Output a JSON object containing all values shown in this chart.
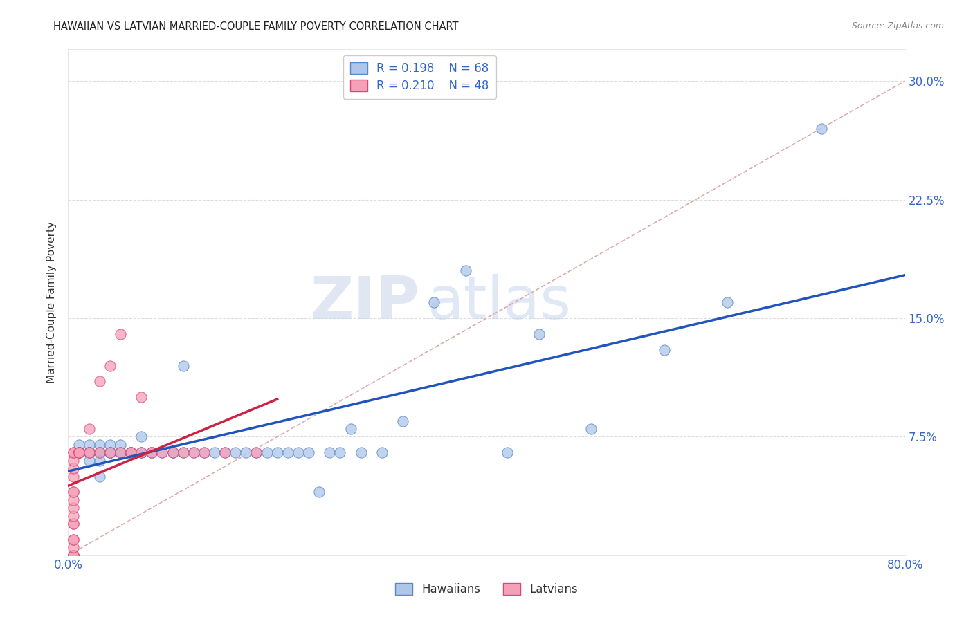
{
  "title": "HAWAIIAN VS LATVIAN MARRIED-COUPLE FAMILY POVERTY CORRELATION CHART",
  "source": "Source: ZipAtlas.com",
  "ylabel": "Married-Couple Family Poverty",
  "xlim": [
    0.0,
    0.8
  ],
  "ylim": [
    0.0,
    0.32
  ],
  "xticks": [
    0.0,
    0.1,
    0.2,
    0.3,
    0.4,
    0.5,
    0.6,
    0.7,
    0.8
  ],
  "xticklabels": [
    "0.0%",
    "",
    "",
    "",
    "",
    "",
    "",
    "",
    "80.0%"
  ],
  "yticks": [
    0.0,
    0.075,
    0.15,
    0.225,
    0.3
  ],
  "yticklabels": [
    "",
    "7.5%",
    "15.0%",
    "22.5%",
    "30.0%"
  ],
  "hawaiian_color": "#aec6e8",
  "latvian_color": "#f4a0b8",
  "hawaiian_edge": "#5588cc",
  "latvian_edge": "#dd4477",
  "trend_hawaiian_color": "#2255bb",
  "trend_latvian_color": "#cc2244",
  "diagonal_color": "#ddaaaa",
  "watermark_zip": "ZIP",
  "watermark_atlas": "atlas",
  "legend_hawaiian_R": "0.198",
  "legend_hawaiian_N": "68",
  "legend_latvian_R": "0.210",
  "legend_latvian_N": "48",
  "hawaiian_x": [
    0.01,
    0.01,
    0.01,
    0.02,
    0.02,
    0.02,
    0.02,
    0.02,
    0.02,
    0.02,
    0.03,
    0.03,
    0.03,
    0.03,
    0.03,
    0.03,
    0.03,
    0.03,
    0.04,
    0.04,
    0.04,
    0.04,
    0.04,
    0.04,
    0.05,
    0.05,
    0.05,
    0.05,
    0.06,
    0.06,
    0.06,
    0.07,
    0.07,
    0.07,
    0.08,
    0.08,
    0.09,
    0.1,
    0.1,
    0.11,
    0.11,
    0.12,
    0.13,
    0.14,
    0.15,
    0.16,
    0.17,
    0.18,
    0.19,
    0.2,
    0.21,
    0.22,
    0.23,
    0.24,
    0.25,
    0.26,
    0.27,
    0.28,
    0.3,
    0.32,
    0.35,
    0.38,
    0.42,
    0.45,
    0.5,
    0.57,
    0.63,
    0.72
  ],
  "hawaiian_y": [
    0.065,
    0.07,
    0.065,
    0.065,
    0.07,
    0.065,
    0.065,
    0.065,
    0.065,
    0.06,
    0.065,
    0.065,
    0.065,
    0.065,
    0.07,
    0.065,
    0.06,
    0.05,
    0.065,
    0.065,
    0.065,
    0.07,
    0.065,
    0.065,
    0.065,
    0.065,
    0.07,
    0.065,
    0.065,
    0.065,
    0.065,
    0.065,
    0.075,
    0.065,
    0.065,
    0.065,
    0.065,
    0.065,
    0.065,
    0.065,
    0.12,
    0.065,
    0.065,
    0.065,
    0.065,
    0.065,
    0.065,
    0.065,
    0.065,
    0.065,
    0.065,
    0.065,
    0.065,
    0.04,
    0.065,
    0.065,
    0.08,
    0.065,
    0.065,
    0.085,
    0.16,
    0.18,
    0.065,
    0.14,
    0.08,
    0.13,
    0.16,
    0.27
  ],
  "latvian_x": [
    0.005,
    0.005,
    0.005,
    0.005,
    0.005,
    0.005,
    0.005,
    0.005,
    0.005,
    0.005,
    0.005,
    0.005,
    0.005,
    0.005,
    0.005,
    0.005,
    0.005,
    0.005,
    0.005,
    0.005,
    0.01,
    0.01,
    0.01,
    0.01,
    0.01,
    0.01,
    0.01,
    0.02,
    0.02,
    0.02,
    0.03,
    0.03,
    0.04,
    0.04,
    0.05,
    0.05,
    0.06,
    0.06,
    0.07,
    0.07,
    0.08,
    0.09,
    0.1,
    0.11,
    0.12,
    0.13,
    0.15,
    0.18
  ],
  "latvian_y": [
    0.0,
    0.0,
    0.0,
    0.0,
    0.0,
    0.005,
    0.01,
    0.01,
    0.02,
    0.02,
    0.025,
    0.03,
    0.035,
    0.04,
    0.04,
    0.05,
    0.055,
    0.06,
    0.065,
    0.065,
    0.065,
    0.065,
    0.065,
    0.065,
    0.065,
    0.065,
    0.065,
    0.065,
    0.065,
    0.08,
    0.065,
    0.11,
    0.065,
    0.12,
    0.065,
    0.14,
    0.065,
    0.065,
    0.065,
    0.1,
    0.065,
    0.065,
    0.065,
    0.065,
    0.065,
    0.065,
    0.065,
    0.065
  ]
}
